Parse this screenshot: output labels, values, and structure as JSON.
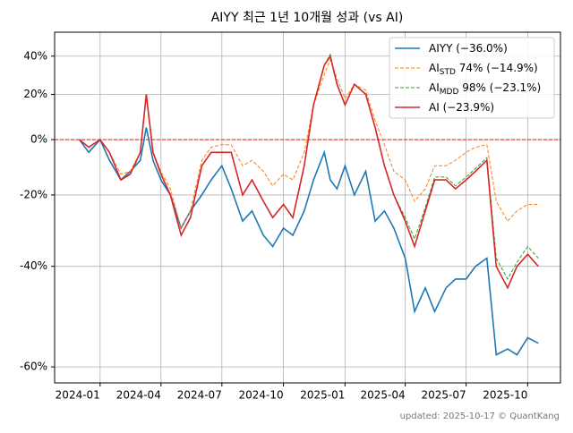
{
  "chart_data": {
    "type": "line",
    "title": "AIYY 최근 1년 10개월 성과 (vs AI)",
    "footer": "updated: 2025-10-17 © QuantKang",
    "yscale": "log-return",
    "grid": true,
    "legend": "upper right",
    "reference_line": {
      "value": 0,
      "color": "#d62728"
    },
    "xlim": [
      "2023-10-25",
      "2025-11-19"
    ],
    "xticks": [
      "2024-01",
      "2024-04",
      "2024-07",
      "2024-10",
      "2025-01",
      "2025-04",
      "2025-07",
      "2025-10"
    ],
    "ylim": [
      -62.5,
      54.2
    ],
    "yticks": [
      {
        "value": 40,
        "label": "40%"
      },
      {
        "value": 20,
        "label": "20%"
      },
      {
        "value": 0,
        "label": "0%"
      },
      {
        "value": -20,
        "label": "-20%"
      },
      {
        "value": -40,
        "label": "-40%"
      },
      {
        "value": -60,
        "label": "-60%"
      }
    ],
    "x": [
      "2023-12-01",
      "2023-12-15",
      "2024-01-01",
      "2024-01-15",
      "2024-02-01",
      "2024-02-15",
      "2024-03-01",
      "2024-03-10",
      "2024-03-20",
      "2024-04-01",
      "2024-04-15",
      "2024-05-01",
      "2024-05-15",
      "2024-06-01",
      "2024-06-15",
      "2024-07-01",
      "2024-07-15",
      "2024-08-01",
      "2024-08-15",
      "2024-09-01",
      "2024-09-15",
      "2024-10-01",
      "2024-10-15",
      "2024-11-01",
      "2024-11-15",
      "2024-12-01",
      "2024-12-10",
      "2024-12-20",
      "2025-01-01",
      "2025-01-15",
      "2025-02-01",
      "2025-02-15",
      "2025-03-01",
      "2025-03-15",
      "2025-04-01",
      "2025-04-15",
      "2025-05-01",
      "2025-05-15",
      "2025-06-01",
      "2025-06-15",
      "2025-07-01",
      "2025-07-15",
      "2025-08-01",
      "2025-08-15",
      "2025-09-01",
      "2025-09-15",
      "2025-10-01",
      "2025-10-17"
    ],
    "series": [
      {
        "name": "AIYY (−36.0%)",
        "color": "#1f77b4",
        "dashed": false,
        "values": [
          0,
          -5,
          0,
          -8,
          -15,
          -12,
          -8,
          5,
          -8,
          -15,
          -20,
          -30,
          -25,
          -20,
          -15,
          -10,
          -18,
          -28,
          -25,
          -32,
          -35,
          -30,
          -32,
          -25,
          -15,
          -5,
          -15,
          -18,
          -10,
          -20,
          -12,
          -28,
          -25,
          -30,
          -38,
          -50,
          -45,
          -50,
          -45,
          -43,
          -43,
          -40,
          -38,
          -58,
          -57,
          -58,
          -55,
          -56
        ]
      },
      {
        "name": "AI",
        "name_sub": "STD",
        "name_tail": " 74% (−14.9%)",
        "color": "#ff7f0e",
        "dashed": true,
        "values": [
          0,
          -3,
          0,
          -5,
          -13,
          -12,
          -5,
          20,
          -5,
          -12,
          -18,
          -30,
          -25,
          -8,
          -3,
          -2,
          -2,
          -10,
          -8,
          -12,
          -17,
          -13,
          -15,
          -5,
          15,
          30,
          38,
          28,
          18,
          25,
          22,
          8,
          -2,
          -12,
          -15,
          -22,
          -18,
          -10,
          -10,
          -8,
          -5,
          -3,
          -2,
          -22,
          -28,
          -25,
          -23,
          -23
        ]
      },
      {
        "name": "AI",
        "name_sub": "MDD",
        "name_tail": " 98% (−23.1%)",
        "color": "#2ca02c",
        "dashed": true,
        "values": [
          0,
          -3,
          0,
          -5,
          -15,
          -13,
          -5,
          20,
          -5,
          -13,
          -20,
          -32,
          -27,
          -10,
          -5,
          -5,
          -5,
          -20,
          -15,
          -22,
          -27,
          -23,
          -27,
          -10,
          15,
          35,
          41,
          25,
          15,
          25,
          20,
          5,
          -10,
          -20,
          -27,
          -33,
          -24,
          -14,
          -14,
          -17,
          -14,
          -11,
          -7,
          -38,
          -43,
          -39,
          -35,
          -38
        ]
      },
      {
        "name": "AI (−23.9%)",
        "color": "#d62728",
        "dashed": false,
        "values": [
          0,
          -3,
          0,
          -5,
          -15,
          -13,
          -5,
          20,
          -5,
          -13,
          -20,
          -32,
          -27,
          -10,
          -5,
          -5,
          -5,
          -20,
          -15,
          -22,
          -27,
          -23,
          -27,
          -10,
          15,
          35,
          40,
          25,
          15,
          25,
          20,
          5,
          -10,
          -20,
          -28,
          -35,
          -25,
          -15,
          -15,
          -18,
          -15,
          -12,
          -8,
          -40,
          -45,
          -40,
          -37,
          -40
        ]
      }
    ]
  }
}
